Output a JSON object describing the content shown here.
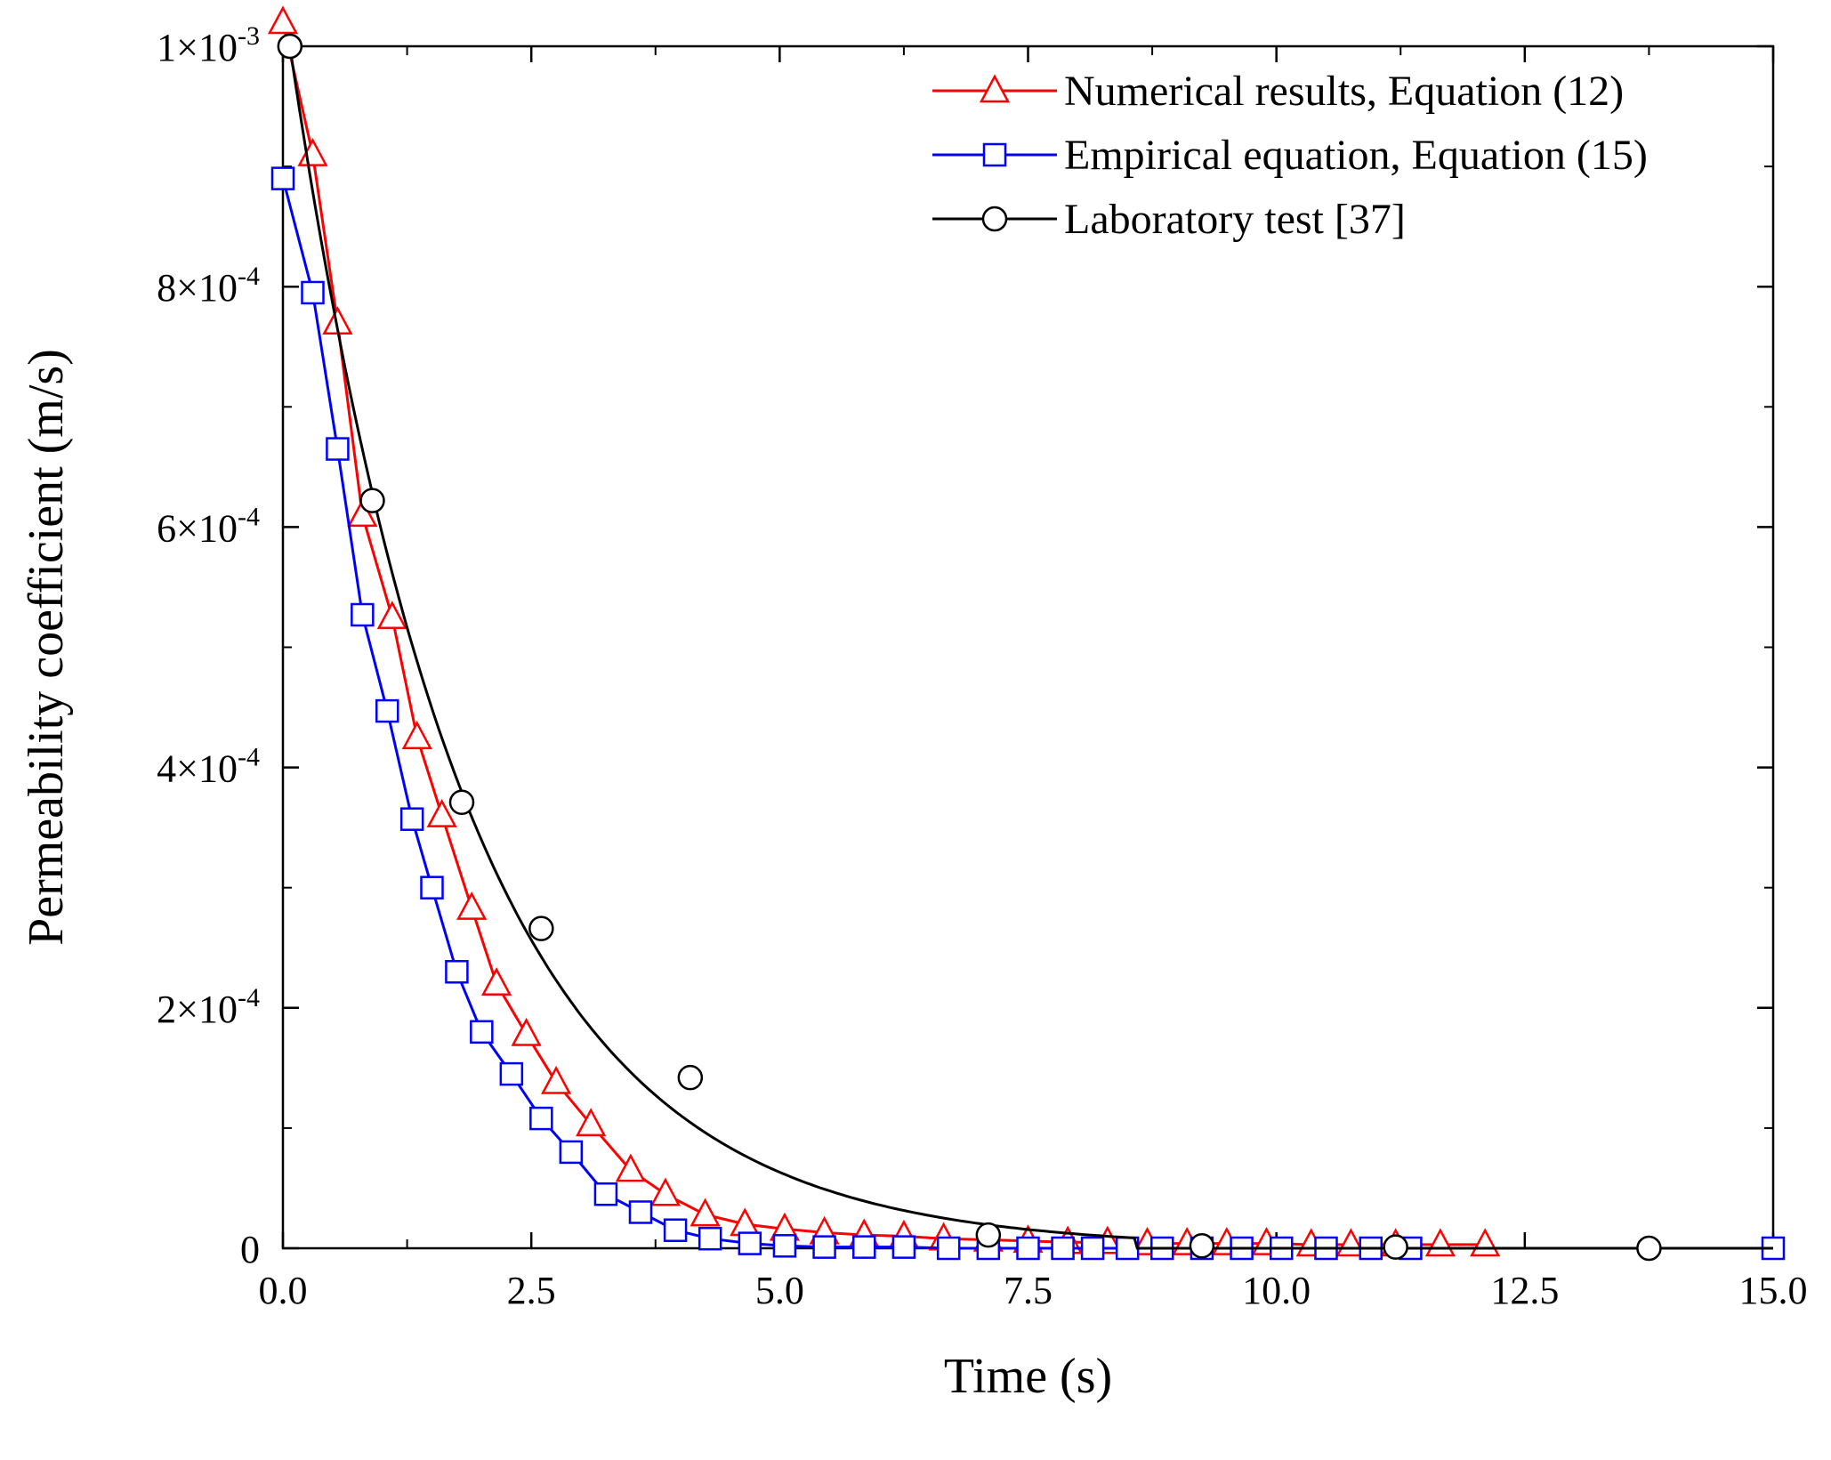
{
  "chart_data": {
    "type": "line",
    "title": "",
    "xlabel": "Time (s)",
    "ylabel": "Permeability coefficient (m/s)",
    "xlim": [
      0,
      15
    ],
    "ylim": [
      0,
      0.001
    ],
    "grid": false,
    "legend_position": "top-right",
    "x_ticks": [
      {
        "value": 0,
        "label": "0.0"
      },
      {
        "value": 2.5,
        "label": "2.5"
      },
      {
        "value": 5,
        "label": "5.0"
      },
      {
        "value": 7.5,
        "label": "7.5"
      },
      {
        "value": 10,
        "label": "10.0"
      },
      {
        "value": 12.5,
        "label": "12.5"
      },
      {
        "value": 15,
        "label": "15.0"
      }
    ],
    "y_ticks": [
      {
        "value": 0,
        "mantissa": "0",
        "exponent": ""
      },
      {
        "value": 0.0002,
        "mantissa": "2×10",
        "exponent": "-4"
      },
      {
        "value": 0.0004,
        "mantissa": "4×10",
        "exponent": "-4"
      },
      {
        "value": 0.0006,
        "mantissa": "6×10",
        "exponent": "-4"
      },
      {
        "value": 0.0008,
        "mantissa": "8×10",
        "exponent": "-4"
      },
      {
        "value": 0.001,
        "mantissa": "1×10",
        "exponent": "-3"
      }
    ],
    "series": [
      {
        "name": "Numerical results, Equation (12)",
        "color": "#ff0000",
        "marker": "triangle",
        "x": [
          0.0,
          0.3,
          0.55,
          0.8,
          1.1,
          1.35,
          1.6,
          1.9,
          2.15,
          2.45,
          2.75,
          3.1,
          3.5,
          3.85,
          4.25,
          4.65,
          5.05,
          5.45,
          5.85,
          6.25,
          6.65,
          7.1,
          7.5,
          7.9,
          8.3,
          8.7,
          9.1,
          9.5,
          9.9,
          10.35,
          10.75,
          11.2,
          11.65,
          12.1
        ],
        "y": [
          0.00102,
          0.00091,
          0.00077,
          0.00061,
          0.000525,
          0.000425,
          0.00036,
          0.000283,
          0.00022,
          0.000178,
          0.000138,
          0.000103,
          6.5e-05,
          4.5e-05,
          2.8e-05,
          2e-05,
          1.6e-05,
          1.3e-05,
          1.1e-05,
          1e-05,
          8e-06,
          7e-06,
          6e-06,
          5e-06,
          5e-06,
          4e-06,
          4e-06,
          4e-06,
          4e-06,
          3e-06,
          3e-06,
          3e-06,
          3e-06,
          3e-06
        ]
      },
      {
        "name": "Empirical equation, Equation (15)",
        "color": "#0000ff",
        "marker": "square",
        "x": [
          0.0,
          0.3,
          0.55,
          0.8,
          1.05,
          1.3,
          1.5,
          1.75,
          2.0,
          2.3,
          2.6,
          2.9,
          3.25,
          3.6,
          3.95,
          4.3,
          4.7,
          5.05,
          5.45,
          5.85,
          6.25,
          6.7,
          7.1,
          7.5,
          7.85,
          8.15,
          8.5,
          8.85,
          9.25,
          9.65,
          10.05,
          10.5,
          10.95,
          11.35,
          15.0
        ],
        "y": [
          0.00089,
          0.000795,
          0.000665,
          0.000527,
          0.000447,
          0.000357,
          0.0003,
          0.00023,
          0.00018,
          0.000145,
          0.000108,
          8e-05,
          4.5e-05,
          3e-05,
          1.5e-05,
          8e-06,
          4e-06,
          2e-06,
          1e-06,
          1e-06,
          1e-06,
          0.0,
          0.0,
          0.0,
          0.0,
          0.0,
          0.0,
          0.0,
          0.0,
          0.0,
          0.0,
          0.0,
          0.0,
          0.0,
          0.0
        ]
      },
      {
        "name": "Laboratory test [37]",
        "color": "#000000",
        "marker": "circle",
        "x": [
          0.07,
          0.9,
          1.8,
          2.6,
          4.1,
          7.1,
          9.25,
          11.2,
          13.75
        ],
        "y": [
          0.001,
          0.000622,
          0.000371,
          0.000266,
          0.000142,
          1.1e-05,
          2e-06,
          1e-06,
          0.0
        ],
        "fit_curve": {
          "model": "exp_decay_to_zero",
          "a": 0.001,
          "k": 0.56,
          "x_end": 8.6
        }
      }
    ]
  }
}
